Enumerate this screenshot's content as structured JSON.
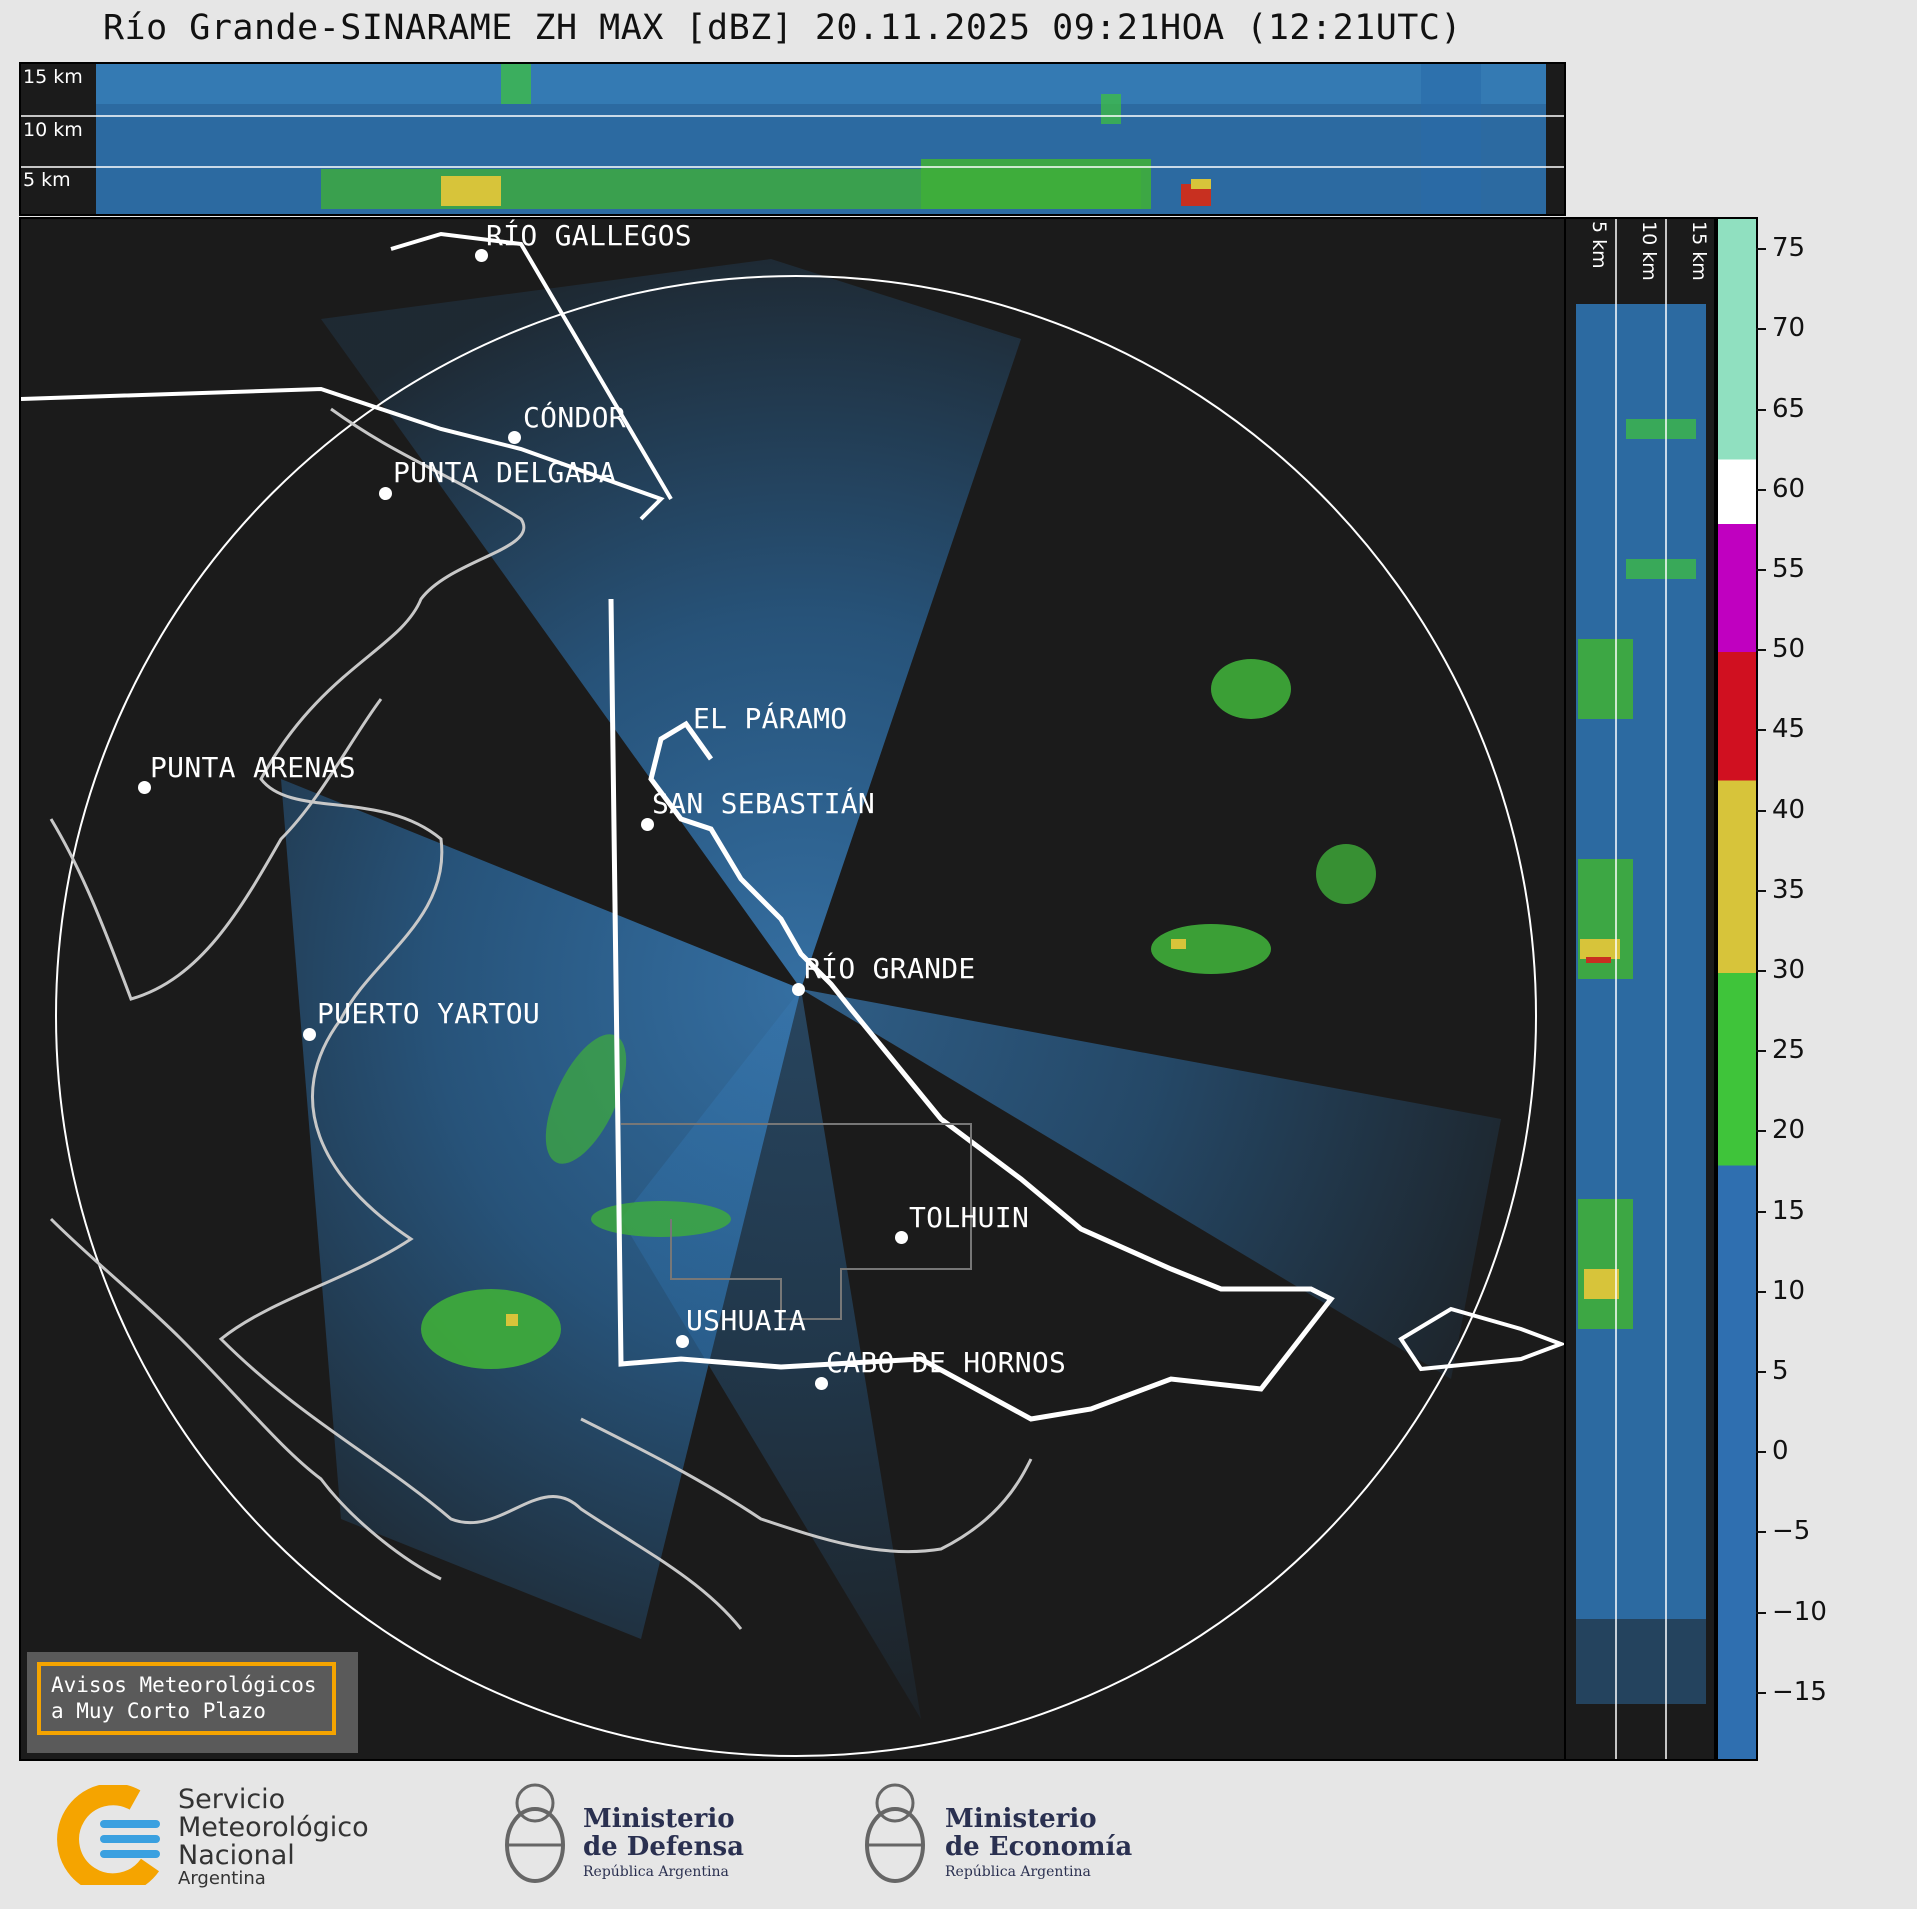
{
  "title": "Río Grande-SINARAME ZH MAX [dBZ] 20.11.2025 09:21HOA (12:21UTC)",
  "height_labels": {
    "h15": "15 km",
    "h10": "10 km",
    "h5": "5 km"
  },
  "cities": [
    {
      "id": "rio-gallegos",
      "name": "RÍO GALLEGOS"
    },
    {
      "id": "condor",
      "name": "CÓNDOR"
    },
    {
      "id": "punta-delgada",
      "name": "PUNTA DELGADA"
    },
    {
      "id": "el-paramo",
      "name": "EL PÁRAMO"
    },
    {
      "id": "punta-arenas",
      "name": "PUNTA ARENAS"
    },
    {
      "id": "san-sebastian",
      "name": "SAN SEBASTIÁN"
    },
    {
      "id": "rio-grande",
      "name": "RÍO GRANDE"
    },
    {
      "id": "puerto-yartou",
      "name": "PUERTO YARTOU"
    },
    {
      "id": "tolhuin",
      "name": "TOLHUIN"
    },
    {
      "id": "ushuaia",
      "name": "USHUAIA"
    },
    {
      "id": "cabo-de-hornos",
      "name": "CABO DE HORNOS"
    }
  ],
  "colorbar": {
    "unit": "dBZ",
    "range": [
      -19,
      77
    ],
    "ticks": [
      "75",
      "70",
      "65",
      "60",
      "55",
      "50",
      "45",
      "40",
      "35",
      "30",
      "25",
      "20",
      "15",
      "10",
      "5",
      "0",
      "−5",
      "−10",
      "−15"
    ],
    "tick_values": [
      75,
      70,
      65,
      60,
      55,
      50,
      45,
      40,
      35,
      30,
      25,
      20,
      15,
      10,
      5,
      0,
      -5,
      -10,
      -15
    ],
    "stops": [
      {
        "from": -19,
        "to": 18,
        "color": "#2f6fb0"
      },
      {
        "from": 18,
        "to": 30,
        "color": "#3fc43a"
      },
      {
        "from": 30,
        "to": 42,
        "color": "#d7c43a"
      },
      {
        "from": 42,
        "to": 50,
        "color": "#d01020"
      },
      {
        "from": 50,
        "to": 58,
        "color": "#c000c0"
      },
      {
        "from": 58,
        "to": 62,
        "color": "#ffffff"
      },
      {
        "from": 62,
        "to": 77,
        "color": "#90e0c0"
      }
    ]
  },
  "warning": {
    "line1": "Avisos Meteorológicos",
    "line2": "a Muy Corto Plazo"
  },
  "logos": {
    "smn": {
      "line1": "Servicio",
      "line2": "Meteorológico",
      "line3": "Nacional",
      "line4": "Argentina"
    },
    "defensa": {
      "line1": "Ministerio",
      "line2": "de Defensa",
      "line3": "República Argentina"
    },
    "economia": {
      "line1": "Ministerio",
      "line2": "de Economía",
      "line3": "República Argentina"
    }
  }
}
